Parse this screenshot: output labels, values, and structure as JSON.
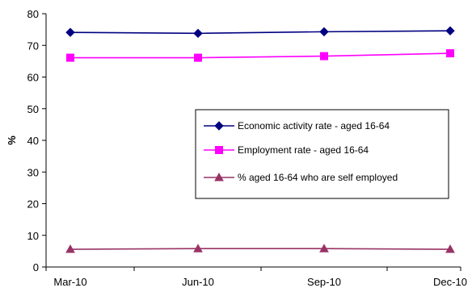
{
  "chart_data": {
    "type": "line",
    "title": "",
    "xlabel": "",
    "ylabel": "%",
    "categories": [
      "Mar-10",
      "Jun-10",
      "Sep-10",
      "Dec-10"
    ],
    "ylim": [
      0,
      80
    ],
    "yticks": [
      0,
      10,
      20,
      30,
      40,
      50,
      60,
      70,
      80
    ],
    "grid": false,
    "legend_position": "right-center",
    "series": [
      {
        "name": "Economic activity rate - aged 16-64",
        "values": [
          74.1,
          73.8,
          74.3,
          74.6
        ],
        "color": "#000080",
        "marker": "diamond"
      },
      {
        "name": "Employment rate - aged 16-64",
        "values": [
          66.1,
          66.1,
          66.6,
          67.5
        ],
        "color": "#FF00FF",
        "marker": "square"
      },
      {
        "name": "% aged 16-64 who are self employed",
        "values": [
          5.6,
          5.8,
          5.8,
          5.6
        ],
        "color": "#993366",
        "marker": "triangle"
      }
    ]
  }
}
